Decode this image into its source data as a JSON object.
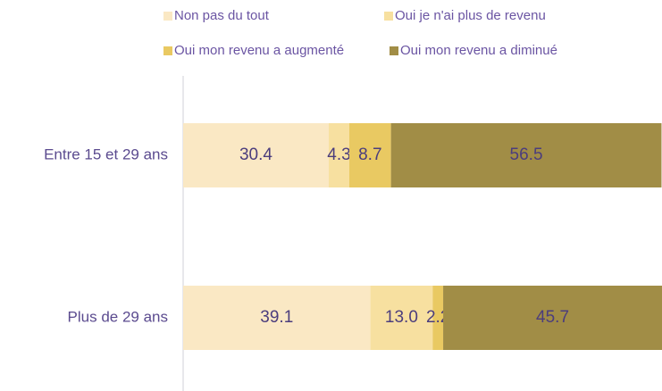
{
  "chart_data": {
    "type": "stacked-bar-horizontal",
    "categories": [
      "Entre 15 et 29 ans",
      "Plus de 29 ans"
    ],
    "series": [
      {
        "name": "Non pas du tout",
        "color": "#fae8c4",
        "values": [
          30.4,
          39.1
        ]
      },
      {
        "name": "Oui je n'ai plus de revenu",
        "color": "#f7e0a0",
        "values": [
          4.3,
          13.0
        ],
        "value_labels": [
          "4.3",
          "13.0"
        ]
      },
      {
        "name": "Oui mon revenu a augmenté",
        "color": "#e9c962",
        "values": [
          8.7,
          2.2
        ]
      },
      {
        "name": "Oui mon revenu a diminué",
        "color": "#a18d46",
        "values": [
          56.5,
          45.7
        ]
      }
    ],
    "xlim": [
      0,
      100
    ]
  }
}
